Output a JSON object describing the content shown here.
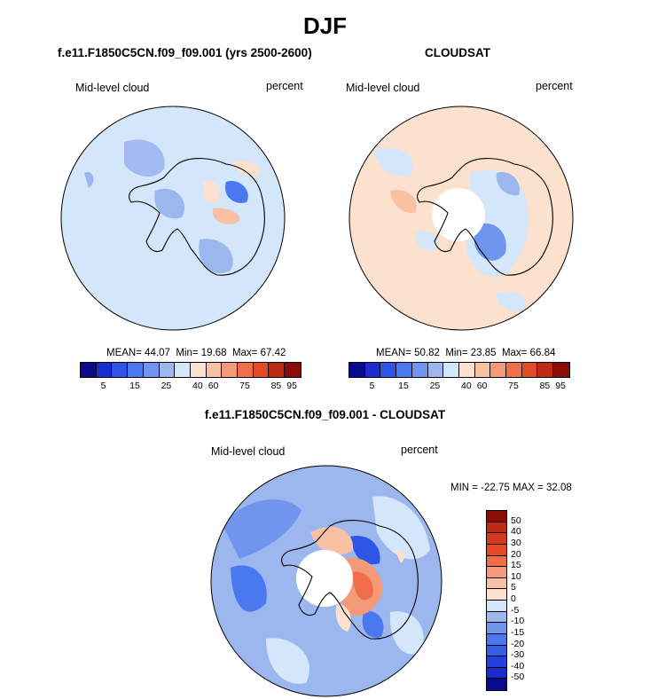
{
  "title": "DJF",
  "colors": {
    "seq": [
      "#0a0a8c",
      "#1a2ed0",
      "#2e56e6",
      "#4a78ee",
      "#6f95ee",
      "#9cb6ee",
      "#d4e6fa",
      "#fbe1ce",
      "#f8c1a4",
      "#f59a78",
      "#ef6d48",
      "#e34a26",
      "#c02a14",
      "#8a0c06"
    ],
    "diff": [
      "#0a0a8c",
      "#1a2ed0",
      "#2440dc",
      "#3560e6",
      "#4a78ee",
      "#6f95ee",
      "#9cb6ee",
      "#d4e6fa",
      "#fbe1ce",
      "#f8c1a4",
      "#f59a78",
      "#ef6d48",
      "#e34a26",
      "#d43a1c",
      "#c02a14",
      "#8a0c06"
    ]
  },
  "chart_data": [
    {
      "type": "heatmap",
      "projection": "south-polar-stereographic",
      "title": "f.e11.F1850C5CN.f09_f09.001 (yrs 2500-2600)",
      "left_label": "Mid-level cloud",
      "right_label": "percent",
      "stats": {
        "mean_label": "MEAN=",
        "mean": "44.07",
        "min_label": "Min=",
        "min": "19.68",
        "max_label": "Max=",
        "max": "67.42"
      },
      "colorbar": {
        "orientation": "horizontal",
        "tick_labels": [
          "5",
          "15",
          "25",
          "40",
          "60",
          "75",
          "85",
          "95"
        ]
      }
    },
    {
      "type": "heatmap",
      "projection": "south-polar-stereographic",
      "title": "CLOUDSAT",
      "left_label": "Mid-level cloud",
      "right_label": "percent",
      "stats": {
        "mean_label": "MEAN=",
        "mean": "50.82",
        "min_label": "Min=",
        "min": "23.85",
        "max_label": "Max=",
        "max": "66.84"
      },
      "colorbar": {
        "orientation": "horizontal",
        "tick_labels": [
          "5",
          "15",
          "25",
          "40",
          "60",
          "75",
          "85",
          "95"
        ]
      }
    },
    {
      "type": "heatmap",
      "projection": "south-polar-stereographic",
      "title": "f.e11.F1850C5CN.f09_f09.001 - CLOUDSAT",
      "left_label": "Mid-level cloud",
      "right_label": "percent",
      "stats_text": "MIN = -22.75 MAX =  32.08",
      "colorbar": {
        "orientation": "vertical",
        "tick_labels": [
          "50",
          "40",
          "30",
          "20",
          "15",
          "10",
          "5",
          "0",
          "-5",
          "-10",
          "-15",
          "-20",
          "-30",
          "-40",
          "-50"
        ]
      }
    }
  ]
}
